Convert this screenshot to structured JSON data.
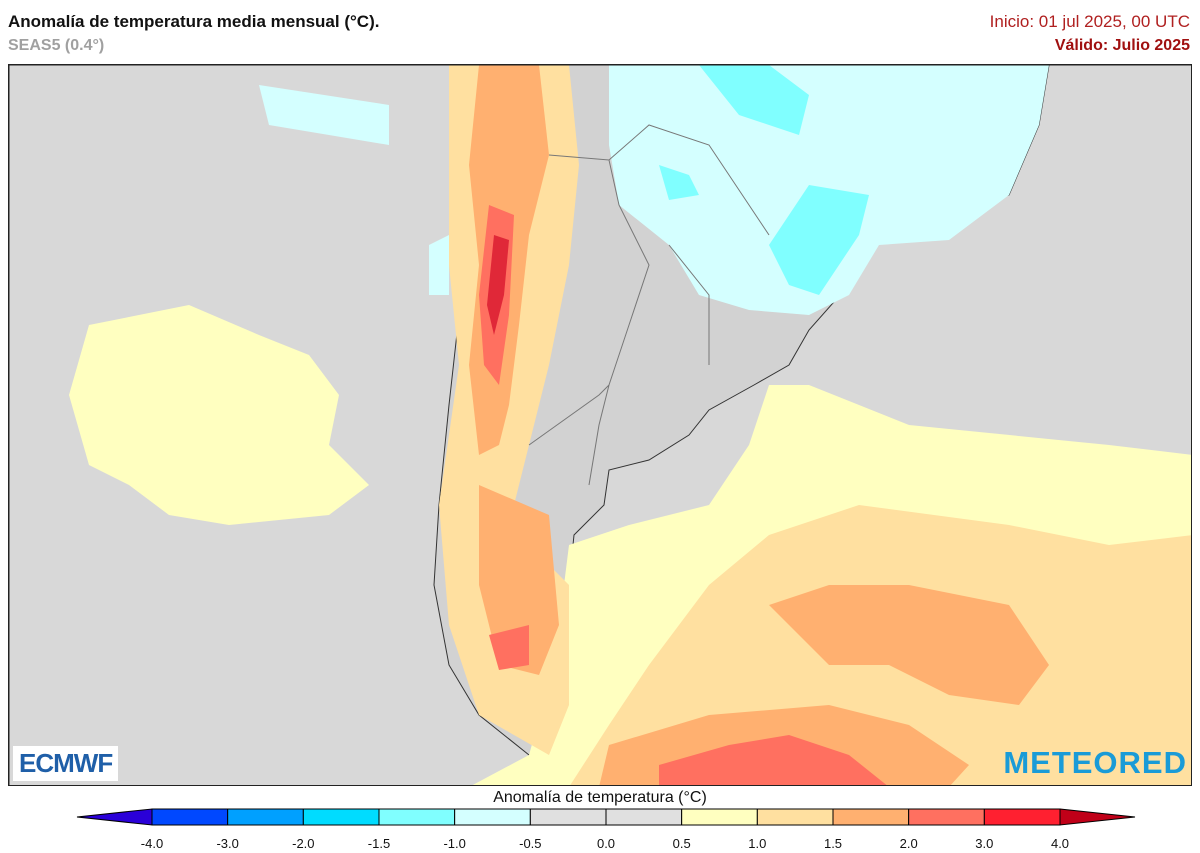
{
  "header": {
    "title": "Anomalía de temperatura media mensual (°C).",
    "subtitle": "SEAS5 (0.4°)",
    "init": "Inicio: 01 jul 2025, 00 UTC",
    "valid": "Válido: Julio 2025"
  },
  "logos": {
    "left": "ECMWF",
    "right": "METEORED"
  },
  "colorbar": {
    "label": "Anomalía de temperatura (°C)",
    "ticks": [
      "-4.0",
      "-3.0",
      "-2.0",
      "-1.5",
      "-1.0",
      "-0.5",
      "0.0",
      "0.5",
      "1.0",
      "1.5",
      "2.0",
      "3.0",
      "4.0"
    ],
    "colors": [
      "#2a00d8",
      "#0048ff",
      "#00a0ff",
      "#00dcff",
      "#80ffff",
      "#d4ffff",
      "#e0e0e0",
      "#e0e0e0",
      "#ffffc0",
      "#ffe0a0",
      "#ffb070",
      "#ff7060",
      "#ff2030",
      "#c00018"
    ]
  },
  "map": {
    "ocean_color": "#d8d8d8",
    "land_color": "#d0d0d0"
  }
}
